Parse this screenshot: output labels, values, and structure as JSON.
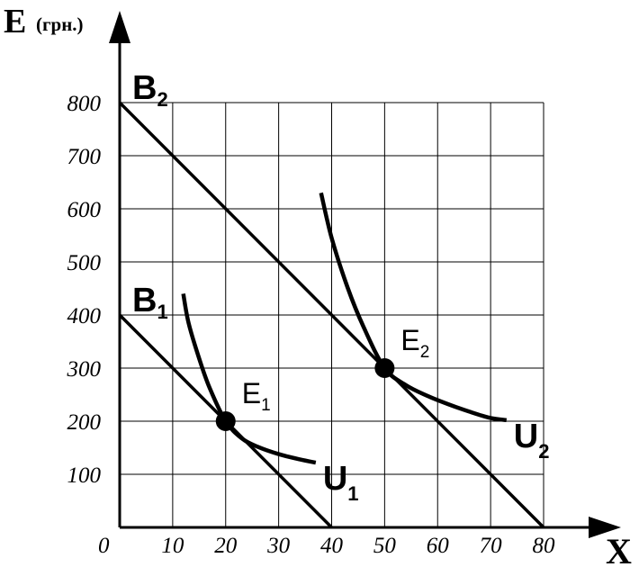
{
  "chart_data": {
    "type": "line",
    "title": "",
    "xlabel": "X",
    "ylabel": "E",
    "ylabel_unit": "(грн.)",
    "origin_label": "0",
    "xlim": [
      0,
      80
    ],
    "ylim": [
      0,
      800
    ],
    "x_ticks": [
      10,
      20,
      30,
      40,
      50,
      60,
      70,
      80
    ],
    "y_ticks": [
      100,
      200,
      300,
      400,
      500,
      600,
      700,
      800
    ],
    "grid": true,
    "budget_lines": [
      {
        "name": "B",
        "sub": "1",
        "points": [
          [
            0,
            400
          ],
          [
            40,
            0
          ]
        ]
      },
      {
        "name": "B",
        "sub": "2",
        "points": [
          [
            0,
            800
          ],
          [
            80,
            0
          ]
        ]
      }
    ],
    "indifference_curves": [
      {
        "name": "U",
        "sub": "1",
        "points": [
          [
            12,
            440
          ],
          [
            13,
            385
          ],
          [
            15,
            318
          ],
          [
            17,
            262
          ],
          [
            20,
            200
          ],
          [
            23,
            168
          ],
          [
            26,
            152
          ],
          [
            30,
            138
          ],
          [
            34,
            128
          ],
          [
            37,
            122
          ]
        ]
      },
      {
        "name": "U",
        "sub": "2",
        "points": [
          [
            38,
            630
          ],
          [
            40,
            545
          ],
          [
            43,
            452
          ],
          [
            46,
            378
          ],
          [
            50,
            300
          ],
          [
            54,
            268
          ],
          [
            58,
            248
          ],
          [
            62,
            232
          ],
          [
            66,
            218
          ],
          [
            70,
            206
          ],
          [
            73,
            202
          ]
        ]
      }
    ],
    "equilibria": [
      {
        "name": "E",
        "sub": "1",
        "x": 20,
        "y": 200
      },
      {
        "name": "E",
        "sub": "2",
        "x": 50,
        "y": 300
      }
    ]
  }
}
